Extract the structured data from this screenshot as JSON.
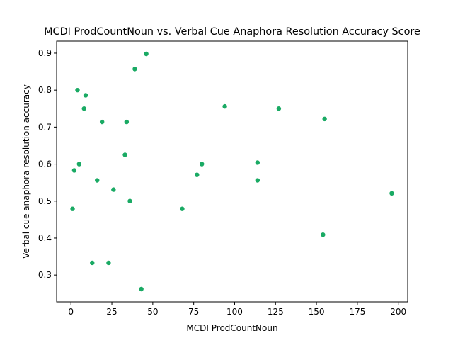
{
  "chart_data": {
    "type": "scatter",
    "title": "MCDI ProdCountNoun vs. Verbal Cue Anaphora Resolution Accuracy Score",
    "xlabel": "MCDI ProdCountNoun",
    "ylabel": "Verbal cue anaphora resolution accuracy",
    "xlim": [
      -8.75,
      205.75
    ],
    "ylim": [
      0.2275,
      0.9325
    ],
    "xticks": [
      0,
      25,
      50,
      75,
      100,
      125,
      150,
      175,
      200
    ],
    "xtick_labels": [
      "0",
      "25",
      "50",
      "75",
      "100",
      "125",
      "150",
      "175",
      "200"
    ],
    "yticks": [
      0.3,
      0.4,
      0.5,
      0.6,
      0.7,
      0.8,
      0.9
    ],
    "ytick_labels": [
      "0.3",
      "0.4",
      "0.5",
      "0.6",
      "0.7",
      "0.8",
      "0.9"
    ],
    "grid": false,
    "legend": "none",
    "marker_color": "#1aaa64",
    "points": [
      {
        "x": 1,
        "y": 0.479
      },
      {
        "x": 2,
        "y": 0.583
      },
      {
        "x": 4,
        "y": 0.8
      },
      {
        "x": 5,
        "y": 0.6
      },
      {
        "x": 8,
        "y": 0.75
      },
      {
        "x": 9,
        "y": 0.786
      },
      {
        "x": 13,
        "y": 0.333
      },
      {
        "x": 16,
        "y": 0.556
      },
      {
        "x": 19,
        "y": 0.714
      },
      {
        "x": 23,
        "y": 0.333
      },
      {
        "x": 26,
        "y": 0.531
      },
      {
        "x": 33,
        "y": 0.625
      },
      {
        "x": 34,
        "y": 0.714
      },
      {
        "x": 36,
        "y": 0.5
      },
      {
        "x": 39,
        "y": 0.857
      },
      {
        "x": 43,
        "y": 0.262
      },
      {
        "x": 46,
        "y": 0.898
      },
      {
        "x": 68,
        "y": 0.479
      },
      {
        "x": 77,
        "y": 0.571
      },
      {
        "x": 80,
        "y": 0.6
      },
      {
        "x": 94,
        "y": 0.756
      },
      {
        "x": 114,
        "y": 0.604
      },
      {
        "x": 114,
        "y": 0.556
      },
      {
        "x": 127,
        "y": 0.75
      },
      {
        "x": 154,
        "y": 0.409
      },
      {
        "x": 155,
        "y": 0.722
      },
      {
        "x": 196,
        "y": 0.521
      }
    ]
  }
}
